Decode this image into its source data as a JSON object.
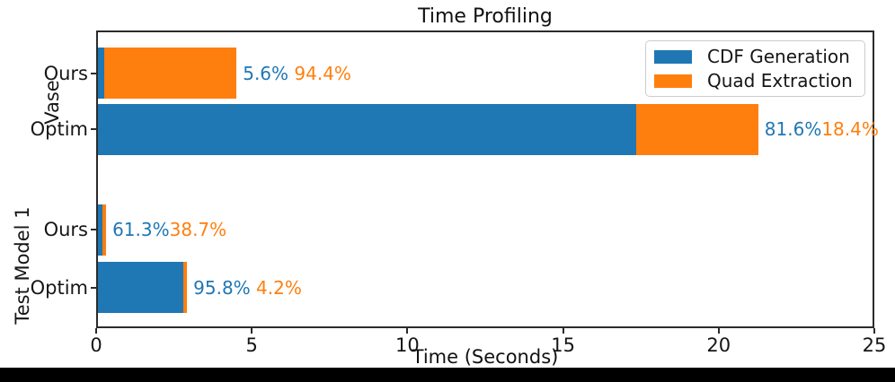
{
  "title": "Time Profiling",
  "xlabel": "Time (Seconds)",
  "chart_data": {
    "type": "bar",
    "orientation": "horizontal",
    "stacked": true,
    "title": "Time Profiling",
    "xlabel": "Time (Seconds)",
    "ylabel": "",
    "xlim": [
      0,
      25
    ],
    "xticks": [
      0,
      5,
      10,
      15,
      20,
      25
    ],
    "grid": false,
    "legend_position": "upper right",
    "series": [
      {
        "name": "CDF Generation",
        "color": "#1f77b4"
      },
      {
        "name": "Quad Extraction",
        "color": "#ff7f0e"
      }
    ],
    "group_labels": {
      "top": "Vase",
      "bottom": "Test Model 1"
    },
    "rows": [
      {
        "group": "Vase",
        "label": "Ours",
        "values": {
          "cdf_generation": 0.25,
          "quad_extraction": 4.26
        },
        "total_seconds": 4.51,
        "pct": {
          "cdf": "5.6%",
          "quad": " 94.4%"
        }
      },
      {
        "group": "Vase",
        "label": "Optim",
        "values": {
          "cdf_generation": 17.36,
          "quad_extraction": 3.91
        },
        "total_seconds": 21.27,
        "pct": {
          "cdf": "81.6%",
          "quad": "18.4%"
        }
      },
      {
        "group": "Test Model 1",
        "label": "Ours",
        "values": {
          "cdf_generation": 0.2,
          "quad_extraction": 0.12
        },
        "total_seconds": 0.32,
        "pct": {
          "cdf": "61.3%",
          "quad": "38.7%"
        }
      },
      {
        "group": "Test Model 1",
        "label": "Optim",
        "values": {
          "cdf_generation": 2.8,
          "quad_extraction": 0.12
        },
        "total_seconds": 2.92,
        "pct": {
          "cdf": "95.8%",
          "quad": " 4.2%"
        }
      }
    ]
  }
}
